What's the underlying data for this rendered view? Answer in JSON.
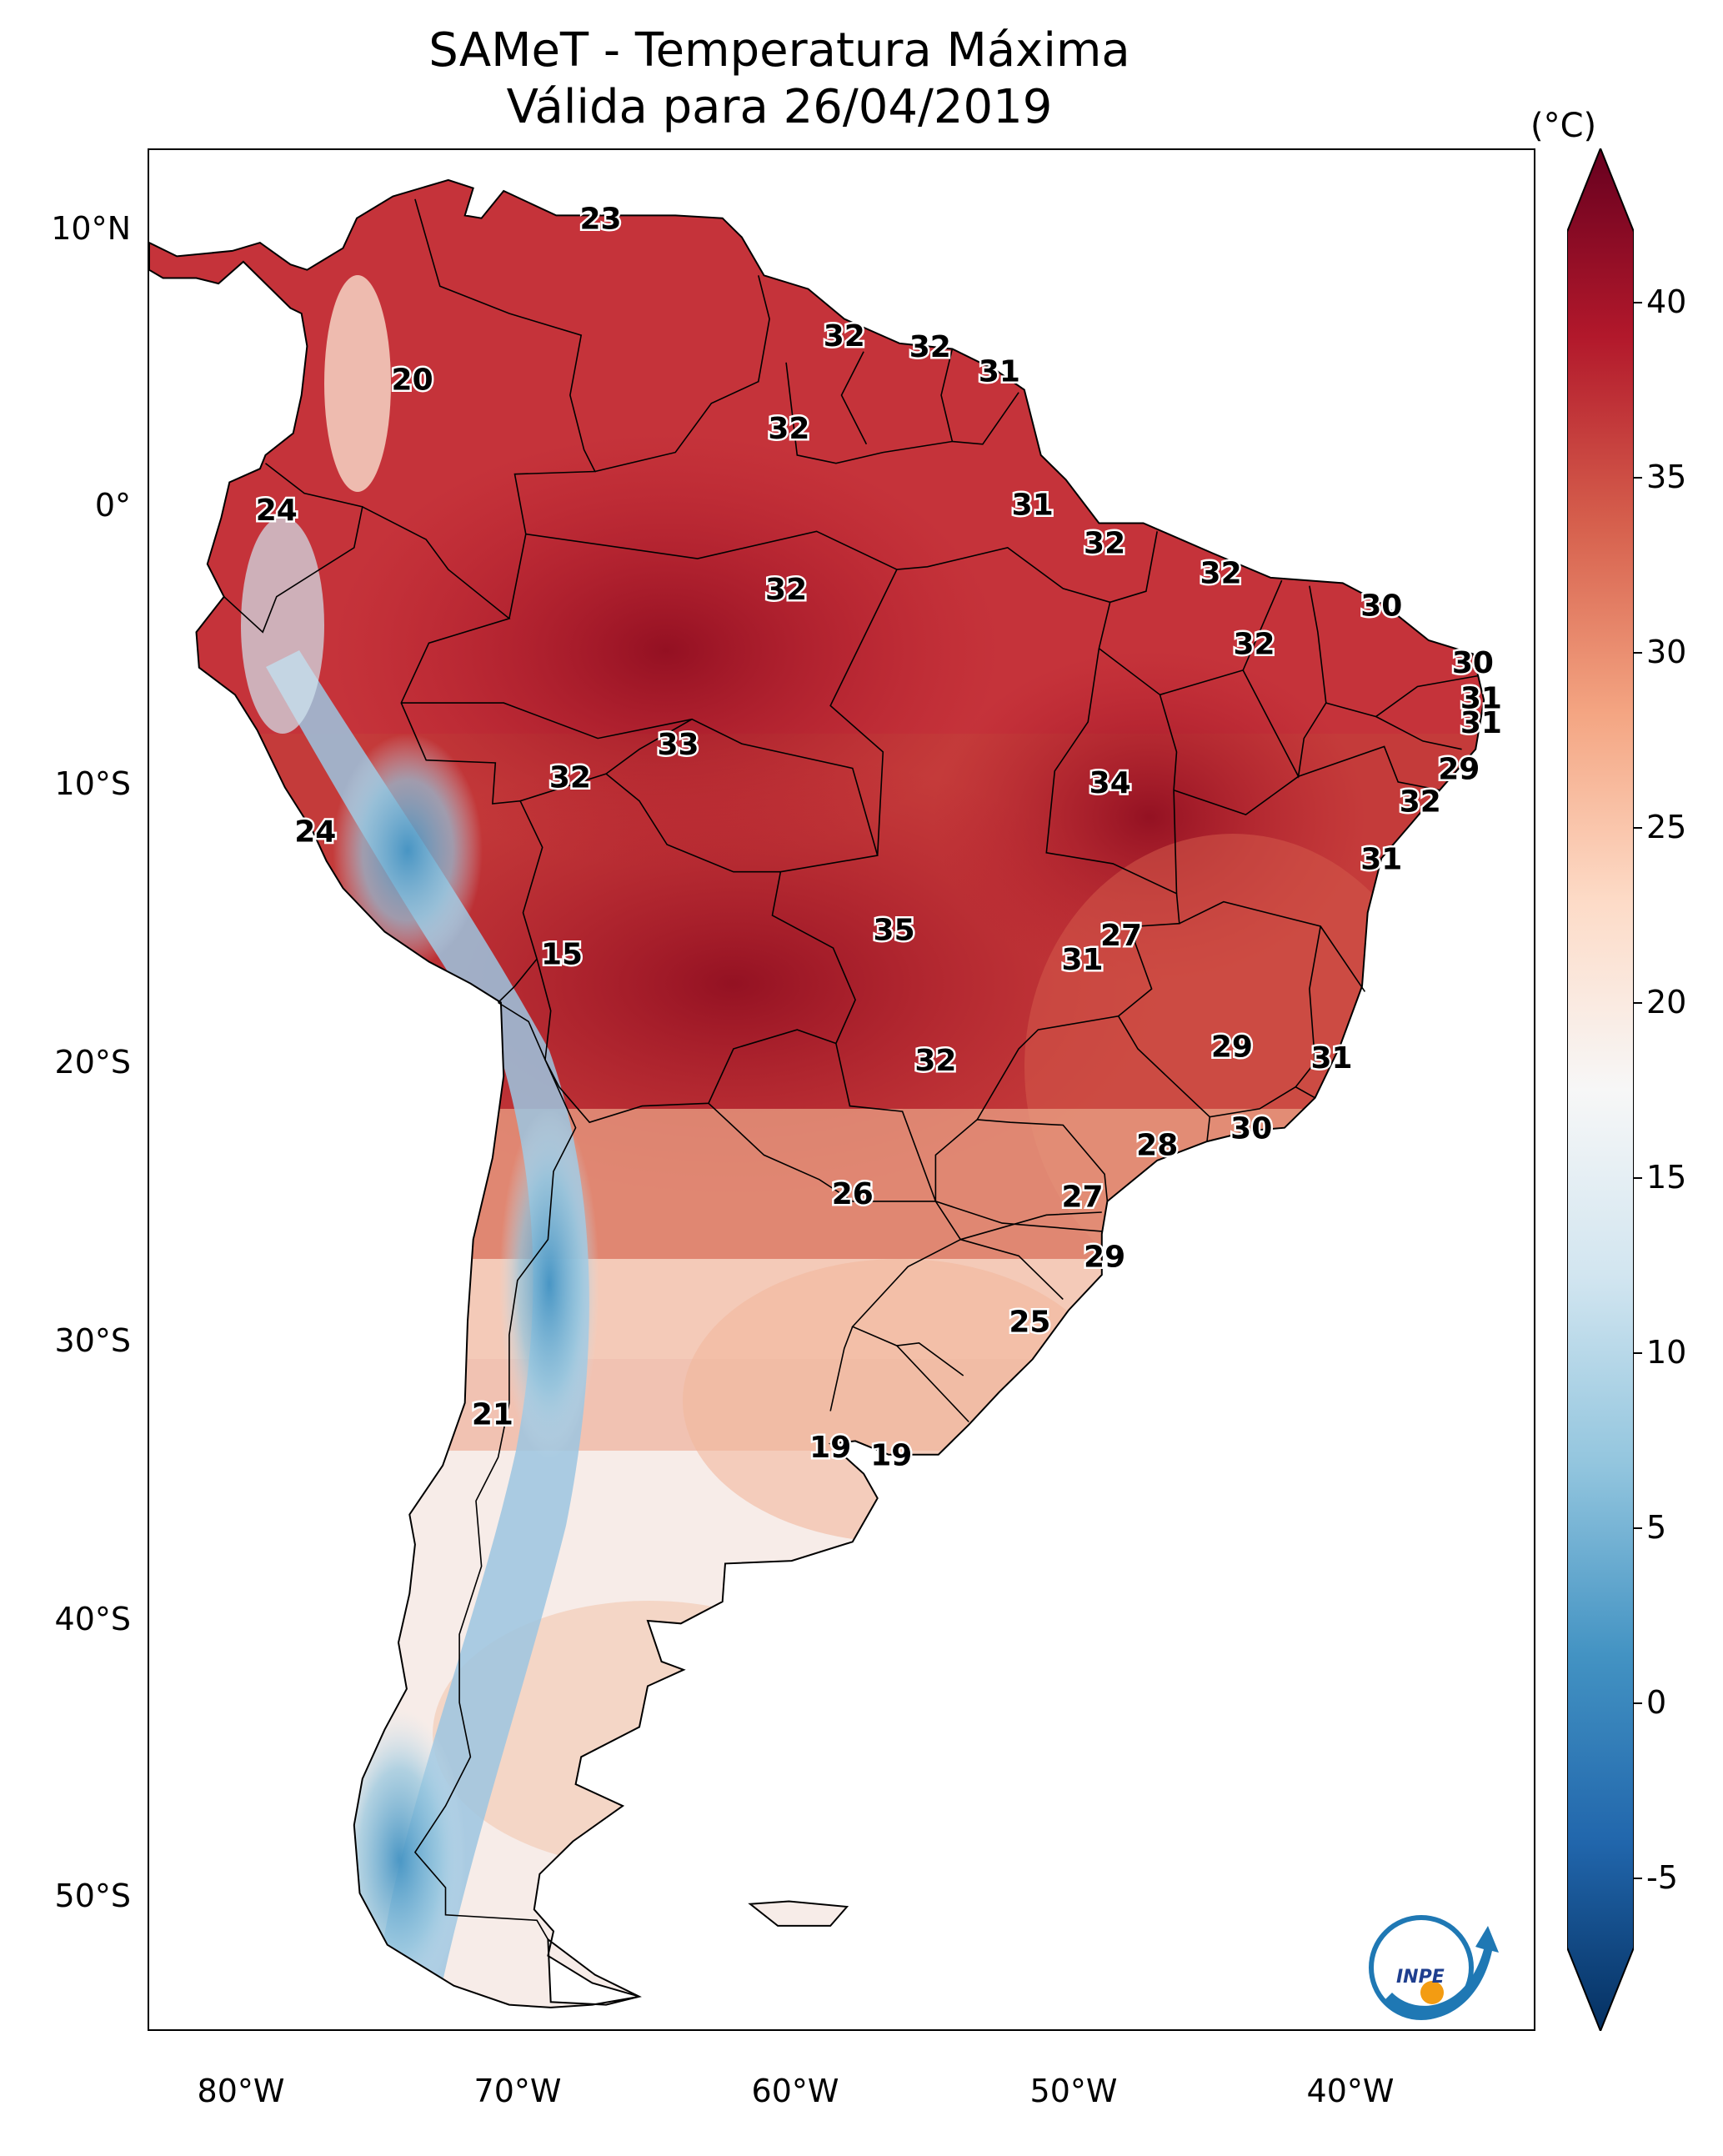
{
  "title": {
    "line1": "SAMeT - Temperatura Máxima",
    "line2": "Válida para 26/04/2019"
  },
  "axes": {
    "lat_labels": [
      "10°N",
      "0°",
      "10°S",
      "20°S",
      "30°S",
      "40°S",
      "50°S"
    ],
    "lon_labels": [
      "80°W",
      "70°W",
      "60°W",
      "50°W",
      "40°W"
    ]
  },
  "colorbar": {
    "unit": "(°C)",
    "ticks": [
      "40",
      "35",
      "30",
      "25",
      "20",
      "15",
      "10",
      "5",
      "0",
      "-5"
    ],
    "range": [
      -7,
      42
    ],
    "colormap": "RdBu_r",
    "colors": [
      "#053061",
      "#2166ac",
      "#4393c3",
      "#92c5de",
      "#d1e5f0",
      "#f7f7f7",
      "#fddbc7",
      "#f4a582",
      "#d6604d",
      "#b2182b",
      "#67001f"
    ]
  },
  "map": {
    "projection": "PlateCarree",
    "lon_range": [
      -83,
      -33
    ],
    "lat_range": [
      -56,
      13
    ],
    "colors": {
      "ocean": "#ffffff",
      "border": "#000000"
    }
  },
  "station_values": [
    {
      "lon": -66.7,
      "lat": 10.5,
      "value": "23"
    },
    {
      "lon": -57.9,
      "lat": 6.2,
      "value": "32"
    },
    {
      "lon": -54.8,
      "lat": 5.8,
      "value": "32"
    },
    {
      "lon": -52.3,
      "lat": 4.9,
      "value": "31"
    },
    {
      "lon": -73.5,
      "lat": 4.6,
      "value": "20"
    },
    {
      "lon": -59.9,
      "lat": 2.8,
      "value": "32"
    },
    {
      "lon": -78.4,
      "lat": -0.2,
      "value": "24"
    },
    {
      "lon": -51.1,
      "lat": 0.0,
      "value": "31"
    },
    {
      "lon": -48.5,
      "lat": -1.4,
      "value": "32"
    },
    {
      "lon": -44.3,
      "lat": -2.5,
      "value": "32"
    },
    {
      "lon": -60.0,
      "lat": -3.1,
      "value": "32"
    },
    {
      "lon": -38.5,
      "lat": -3.7,
      "value": "30"
    },
    {
      "lon": -43.1,
      "lat": -5.1,
      "value": "32"
    },
    {
      "lon": -35.2,
      "lat": -5.8,
      "value": "30"
    },
    {
      "lon": -34.9,
      "lat": -7.1,
      "value": "31"
    },
    {
      "lon": -34.9,
      "lat": -8.0,
      "value": "31"
    },
    {
      "lon": -63.9,
      "lat": -8.8,
      "value": "33"
    },
    {
      "lon": -35.7,
      "lat": -9.7,
      "value": "29"
    },
    {
      "lon": -67.8,
      "lat": -10.0,
      "value": "32"
    },
    {
      "lon": -48.3,
      "lat": -10.2,
      "value": "34"
    },
    {
      "lon": -37.1,
      "lat": -10.9,
      "value": "32"
    },
    {
      "lon": -77.0,
      "lat": -12.0,
      "value": "24"
    },
    {
      "lon": -38.5,
      "lat": -13.0,
      "value": "31"
    },
    {
      "lon": -68.1,
      "lat": -16.5,
      "value": "15"
    },
    {
      "lon": -56.1,
      "lat": -15.6,
      "value": "35"
    },
    {
      "lon": -49.3,
      "lat": -16.7,
      "value": "31"
    },
    {
      "lon": -47.9,
      "lat": -15.8,
      "value": "27"
    },
    {
      "lon": -54.6,
      "lat": -20.4,
      "value": "32"
    },
    {
      "lon": -43.9,
      "lat": -19.9,
      "value": "29"
    },
    {
      "lon": -40.3,
      "lat": -20.3,
      "value": "31"
    },
    {
      "lon": -43.2,
      "lat": -22.9,
      "value": "30"
    },
    {
      "lon": -46.6,
      "lat": -23.5,
      "value": "28"
    },
    {
      "lon": -57.6,
      "lat": -25.3,
      "value": "26"
    },
    {
      "lon": -49.3,
      "lat": -25.4,
      "value": "27"
    },
    {
      "lon": -48.5,
      "lat": -27.6,
      "value": "29"
    },
    {
      "lon": -51.2,
      "lat": -30.0,
      "value": "25"
    },
    {
      "lon": -70.6,
      "lat": -33.4,
      "value": "21"
    },
    {
      "lon": -58.4,
      "lat": -34.6,
      "value": "19"
    },
    {
      "lon": -56.2,
      "lat": -34.9,
      "value": "19"
    }
  ],
  "logo": {
    "text": "INPE"
  }
}
